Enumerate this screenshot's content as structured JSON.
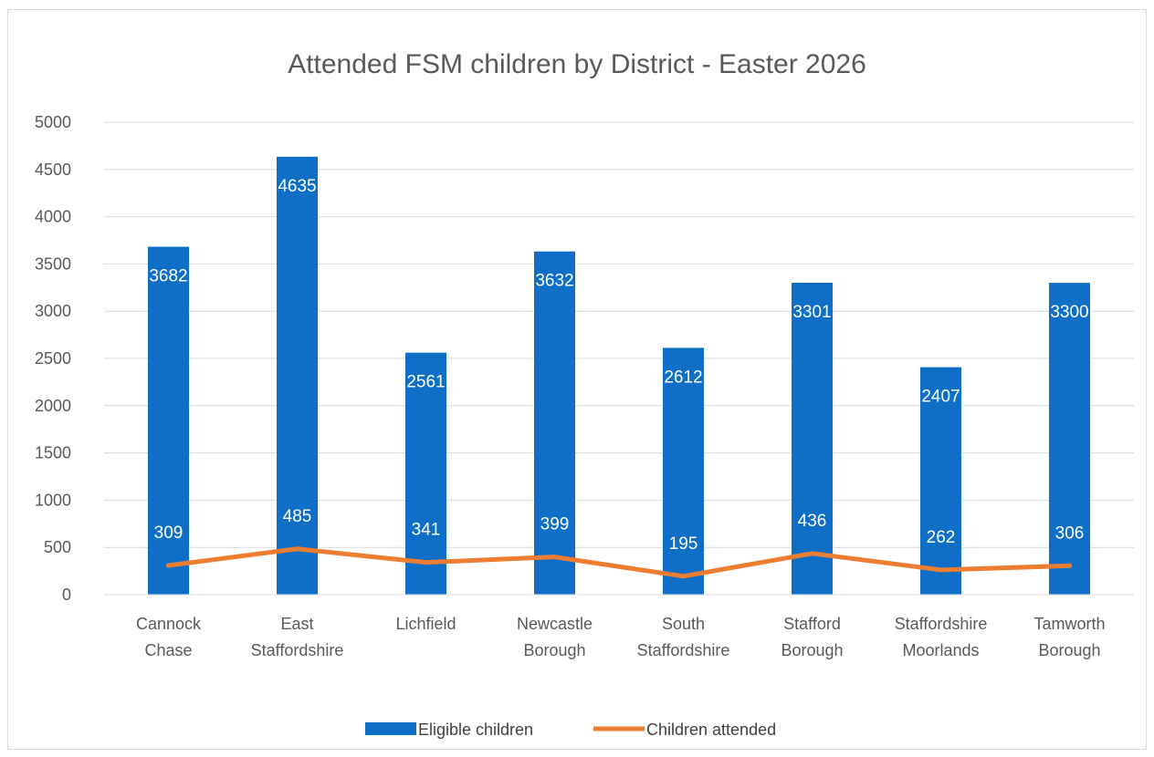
{
  "chart_data": {
    "type": "bar",
    "title": "Attended FSM children by District - Easter 2026",
    "categories": [
      [
        "Cannock",
        "Chase"
      ],
      [
        "East",
        "Staffordshire"
      ],
      [
        "Lichfield"
      ],
      [
        "Newcastle",
        "Borough"
      ],
      [
        "South",
        "Staffordshire"
      ],
      [
        "Stafford",
        "Borough"
      ],
      [
        "Staffordshire",
        "Moorlands"
      ],
      [
        "Tamworth",
        "Borough"
      ]
    ],
    "series": [
      {
        "name": "Eligible children",
        "kind": "bar",
        "color": "#0f6fc6",
        "values": [
          3682,
          4635,
          2561,
          3632,
          2612,
          3301,
          2407,
          3300
        ]
      },
      {
        "name": "Children attended",
        "kind": "line",
        "color": "#ed7d31",
        "values": [
          309,
          485,
          341,
          399,
          195,
          436,
          262,
          306
        ]
      }
    ],
    "y_ticks": [
      "0",
      "500",
      "1000",
      "1500",
      "2000",
      "2500",
      "3000",
      "3500",
      "4000",
      "4500",
      "5000"
    ],
    "ylim": [
      0,
      5000
    ],
    "grid": true,
    "legend_position": "bottom"
  }
}
